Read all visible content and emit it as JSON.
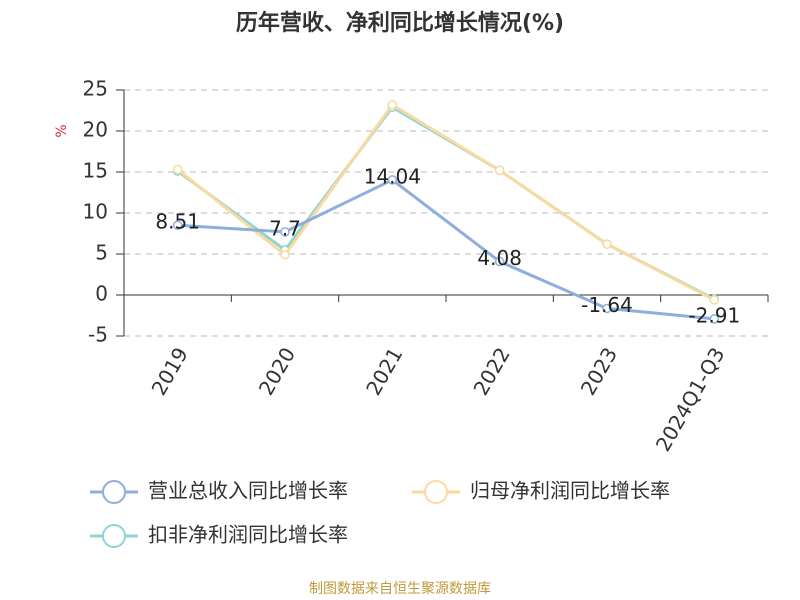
{
  "chart_data": {
    "type": "line",
    "title": "历年营收、净利同比增长情况(%)",
    "y_label": "%",
    "categories": [
      "2019",
      "2020",
      "2021",
      "2022",
      "2023",
      "2024Q1-Q3"
    ],
    "series": [
      {
        "name": "营业总收入同比增长率",
        "color": "#8eaedb",
        "values": [
          8.51,
          7.7,
          14.04,
          4.08,
          -1.64,
          -2.91
        ]
      },
      {
        "name": "归母净利润同比增长率",
        "color": "#f9d9a0",
        "values": [
          15.3,
          4.9,
          23.2,
          15.2,
          6.2,
          -0.6
        ]
      },
      {
        "name": "扣非净利润同比增长率",
        "color": "#8dd5d0",
        "values": [
          15.1,
          5.5,
          22.9,
          15.2,
          6.2,
          -0.5
        ]
      }
    ],
    "ylim": [
      -5,
      25
    ],
    "yticks": [
      -5,
      0,
      5,
      10,
      15,
      20,
      25
    ],
    "grid": true,
    "footer": "制图数据来自恒生聚源数据库"
  }
}
